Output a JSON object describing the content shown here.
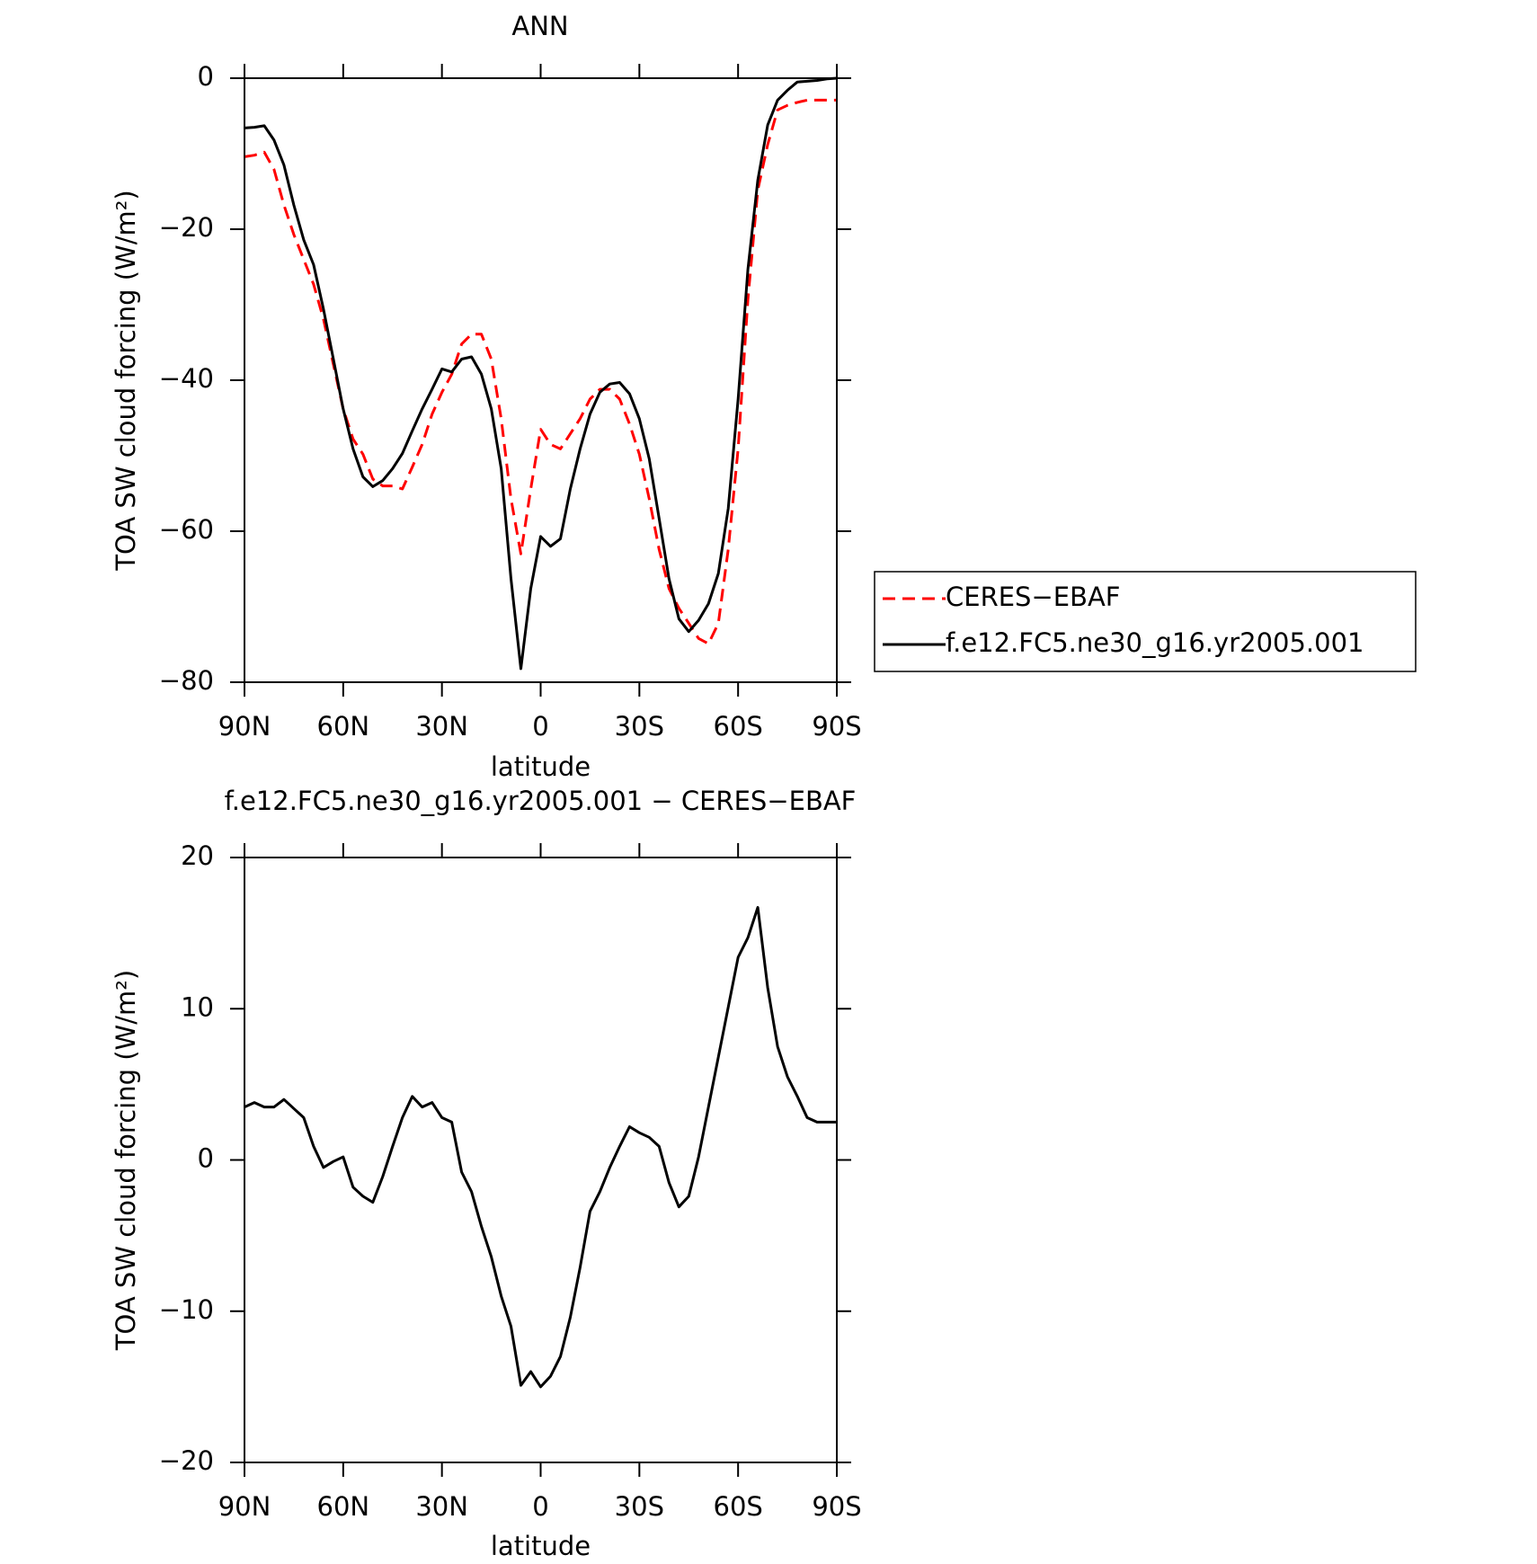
{
  "chart_data": [
    {
      "type": "line",
      "title": "ANN",
      "x_label": "latitude",
      "y_label": "TOA SW cloud forcing (W/m²)",
      "x": [
        90,
        87,
        84,
        81,
        78,
        75,
        72,
        69,
        66,
        63,
        60,
        57,
        54,
        51,
        48,
        45,
        42,
        39,
        36,
        33,
        30,
        27,
        24,
        21,
        18,
        15,
        12,
        9,
        6,
        3,
        0,
        -3,
        -6,
        -9,
        -12,
        -15,
        -18,
        -21,
        -24,
        -27,
        -30,
        -33,
        -36,
        -39,
        -42,
        -45,
        -48,
        -51,
        -54,
        -57,
        -60,
        -63,
        -66,
        -69,
        -72,
        -75,
        -78,
        -81,
        -84,
        -87,
        -90
      ],
      "xlim": [
        90,
        -90
      ],
      "xticks": [
        {
          "value": 90,
          "label": "90N"
        },
        {
          "value": 60,
          "label": "60N"
        },
        {
          "value": 30,
          "label": "30N"
        },
        0,
        {
          "value": -30,
          "label": "30S"
        },
        {
          "value": -60,
          "label": "60S"
        },
        {
          "value": -90,
          "label": "90S"
        }
      ],
      "ylim": [
        -80,
        0
      ],
      "yticks": [
        0,
        {
          "value": -20,
          "label": "−20"
        },
        {
          "value": -40,
          "label": "−40"
        },
        {
          "value": -60,
          "label": "−60"
        },
        {
          "value": -80,
          "label": "−80"
        }
      ],
      "legend": "right",
      "series": [
        {
          "name": "CERES−EBAF",
          "color": "#ff0000",
          "dash": "dashed",
          "values": [
            -10.4,
            -10.2,
            -9.8,
            -12.1,
            -16.8,
            -20.7,
            -24.0,
            -27.3,
            -31.9,
            -37.9,
            -43.8,
            -47.8,
            -49.8,
            -53.1,
            -54.0,
            -54.0,
            -54.4,
            -51.5,
            -48.5,
            -44.5,
            -41.6,
            -39.2,
            -35.2,
            -33.9,
            -33.9,
            -37.2,
            -45.1,
            -55.7,
            -63.0,
            -54.4,
            -46.5,
            -48.5,
            -49.1,
            -47.1,
            -45.1,
            -42.5,
            -41.2,
            -41.2,
            -42.5,
            -45.8,
            -49.8,
            -55.7,
            -62.4,
            -67.6,
            -70.2,
            -72.2,
            -74.2,
            -74.9,
            -72.2,
            -62.4,
            -49.1,
            -29.3,
            -14.8,
            -8.8,
            -4.2,
            -3.6,
            -3.2,
            -2.9,
            -2.9,
            -2.9,
            -2.9
          ]
        },
        {
          "name": "f.e12.FC5.ne30_g16.yr2005.001",
          "color": "#000000",
          "dash": "solid",
          "values": [
            -6.6,
            -6.5,
            -6.3,
            -8.2,
            -11.5,
            -16.8,
            -21.4,
            -24.7,
            -30.6,
            -37.2,
            -43.8,
            -49.1,
            -52.8,
            -54.1,
            -53.3,
            -51.7,
            -49.7,
            -46.7,
            -43.8,
            -41.2,
            -38.5,
            -38.9,
            -37.2,
            -36.9,
            -39.2,
            -43.8,
            -51.7,
            -66.3,
            -78.2,
            -67.6,
            -60.7,
            -62.0,
            -61.0,
            -54.4,
            -49.1,
            -44.5,
            -41.6,
            -40.5,
            -40.3,
            -41.8,
            -45.1,
            -50.4,
            -58.3,
            -66.3,
            -71.6,
            -73.3,
            -71.8,
            -69.6,
            -65.6,
            -57.0,
            -42.5,
            -25.3,
            -13.5,
            -6.2,
            -2.9,
            -1.6,
            -0.5,
            -0.4,
            -0.3,
            -0.1,
            0
          ]
        }
      ]
    },
    {
      "type": "line",
      "title": "f.e12.FC5.ne30_g16.yr2005.001 − CERES−EBAF",
      "x_label": "latitude",
      "y_label": "TOA SW cloud forcing (W/m²)",
      "x": [
        90,
        87,
        84,
        81,
        78,
        75,
        72,
        69,
        66,
        63,
        60,
        57,
        54,
        51,
        48,
        45,
        42,
        39,
        36,
        33,
        30,
        27,
        24,
        21,
        18,
        15,
        12,
        9,
        6,
        3,
        0,
        -3,
        -6,
        -9,
        -12,
        -15,
        -18,
        -21,
        -24,
        -27,
        -30,
        -33,
        -36,
        -39,
        -42,
        -45,
        -48,
        -51,
        -54,
        -57,
        -60,
        -63,
        -66,
        -69,
        -72,
        -75,
        -78,
        -81,
        -84,
        -87,
        -90
      ],
      "xlim": [
        90,
        -90
      ],
      "xticks": [
        {
          "value": 90,
          "label": "90N"
        },
        {
          "value": 60,
          "label": "60N"
        },
        {
          "value": 30,
          "label": "30N"
        },
        0,
        {
          "value": -30,
          "label": "30S"
        },
        {
          "value": -60,
          "label": "60S"
        },
        {
          "value": -90,
          "label": "90S"
        }
      ],
      "ylim": [
        -20,
        20
      ],
      "yticks": [
        20,
        10,
        0,
        {
          "value": -10,
          "label": "−10"
        },
        {
          "value": -20,
          "label": "−20"
        }
      ],
      "color": "#000000",
      "values": [
        3.5,
        3.8,
        3.5,
        3.5,
        4.0,
        3.4,
        2.8,
        0.9,
        -0.5,
        -0.1,
        0.2,
        -1.8,
        -2.4,
        -2.8,
        -1.1,
        0.9,
        2.8,
        4.2,
        3.5,
        3.8,
        2.8,
        2.5,
        -0.8,
        -2.1,
        -4.4,
        -6.4,
        -9.0,
        -11.0,
        -14.9,
        -14.0,
        -15.0,
        -14.3,
        -13.0,
        -10.4,
        -7.1,
        -3.4,
        -2.1,
        -0.5,
        0.9,
        2.2,
        1.8,
        1.5,
        0.9,
        -1.5,
        -3.1,
        -2.4,
        0.2,
        3.5,
        6.8,
        10.1,
        13.4,
        14.7,
        16.7,
        11.4,
        7.5,
        5.5,
        4.2,
        2.8,
        2.5,
        2.5,
        2.5
      ]
    }
  ]
}
